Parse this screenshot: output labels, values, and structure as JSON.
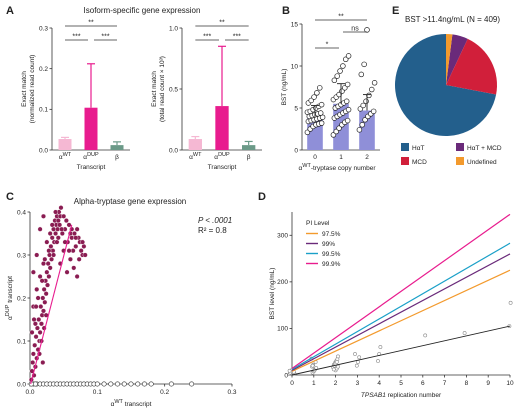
{
  "colors": {
    "alpha_wt": "#f5b8d3",
    "alpha_dup": "#e81c8e",
    "beta": "#6b9a88",
    "bst_bar": "#8f8fd8",
    "h_alpha_t": "#235f8c",
    "h_alpha_t_mcd": "#6a2a7a",
    "mcd": "#d11f3a",
    "undefined": "#f39a2d",
    "scatter_point": "#8a1c52",
    "pi_97_5": "#f39a2d",
    "pi_99": "#6a2a7a",
    "pi_99_5": "#1aa0c8",
    "pi_99_9": "#e81c8e"
  },
  "panels": {
    "A": {
      "letter": "A",
      "title": "Isoform-specific gene expression"
    },
    "B": {
      "letter": "B"
    },
    "C": {
      "letter": "C",
      "title": "Alpha-tryptase gene expression",
      "stat_p": "P < .0001",
      "stat_r2": "R² = 0.8"
    },
    "D": {
      "letter": "D",
      "legend_title": "PI Level"
    },
    "E": {
      "letter": "E",
      "title": "BST >11.4ng/mL (N = 409)"
    }
  },
  "chart_data": [
    {
      "id": "A1",
      "type": "bar",
      "categories": [
        "αWT",
        "αDUP",
        "β"
      ],
      "category_base": [
        "α",
        "α",
        "β"
      ],
      "category_sup": [
        "WT",
        "DUP",
        ""
      ],
      "values": [
        0.027,
        0.104,
        0.012
      ],
      "errors": [
        0.004,
        0.108,
        0.008
      ],
      "ylabel": "Exact match (normalized read count)",
      "ylabel_lines": [
        "Exact match",
        "(normalized read count)"
      ],
      "xlabel": "Transcript",
      "ylim": [
        0,
        0.3
      ],
      "yticks": [
        0,
        0.1,
        0.2,
        0.3
      ],
      "yticklabels": [
        "0.0",
        "0.1",
        "0.2",
        "0.3"
      ],
      "significance": [
        {
          "from": 0,
          "to": 2,
          "label": "**"
        },
        {
          "from": 0,
          "to": 1,
          "label": "***"
        },
        {
          "from": 1,
          "to": 2,
          "label": "***"
        }
      ]
    },
    {
      "id": "A2",
      "type": "bar",
      "categories": [
        "αWT",
        "αDUP",
        "β"
      ],
      "category_base": [
        "α",
        "α",
        "β"
      ],
      "category_sup": [
        "WT",
        "DUP",
        ""
      ],
      "values": [
        0.09,
        0.36,
        0.04
      ],
      "errors": [
        0.02,
        0.49,
        0.03
      ],
      "ylabel": "Exact match (total read count × 10³)",
      "ylabel_lines": [
        "Exact match",
        "(total read count × 10³)"
      ],
      "xlabel": "Transcript",
      "ylim": [
        0,
        1.0
      ],
      "yticks": [
        0,
        0.5,
        1.0
      ],
      "yticklabels": [
        "0.0",
        "0.5",
        "1.0"
      ],
      "significance": [
        {
          "from": 0,
          "to": 2,
          "label": "**"
        },
        {
          "from": 0,
          "to": 1,
          "label": "***"
        },
        {
          "from": 1,
          "to": 2,
          "label": "***"
        }
      ]
    },
    {
      "id": "B",
      "type": "bar",
      "categories": [
        "0",
        "1",
        "2"
      ],
      "values": [
        4.0,
        5.5,
        4.7
      ],
      "errors": [
        1.3,
        2.4,
        1.9
      ],
      "points": [
        [
          2.1,
          2.5,
          2.8,
          3.0,
          3.1,
          3.2,
          3.4,
          3.5,
          3.6,
          3.7,
          3.8,
          3.9,
          4.0,
          4.1,
          4.2,
          4.3,
          4.4,
          4.5,
          4.6,
          4.8,
          5.0,
          5.2,
          5.4,
          5.6,
          5.9,
          6.3,
          6.8,
          7.4
        ],
        [
          1.8,
          2.2,
          2.6,
          3.0,
          3.3,
          3.5,
          3.8,
          4.0,
          4.2,
          4.4,
          4.6,
          4.8,
          5.0,
          5.2,
          5.4,
          5.6,
          5.8,
          6.0,
          6.3,
          6.6,
          7.0,
          7.4,
          7.8,
          8.3,
          8.8,
          9.4,
          10.0,
          10.8,
          11.2
        ],
        [
          2.4,
          3.0,
          3.6,
          4.0,
          4.3,
          4.6,
          4.9,
          5.3,
          5.8,
          6.5,
          7.2,
          8.0,
          9.0,
          10.2,
          14.3
        ]
      ],
      "ylabel": "BST (ng/mL)",
      "xlabel": "αWT-tryptase copy number",
      "xlabel_base": "α",
      "xlabel_sup": "WT",
      "xlabel_rest": "-tryptase copy number",
      "ylim": [
        0,
        15
      ],
      "yticks": [
        0,
        5,
        10,
        15
      ],
      "significance": [
        {
          "from": 0,
          "to": 2,
          "label": "**"
        },
        {
          "from": 0,
          "to": 1,
          "label": "*"
        },
        {
          "from": 1,
          "to": 2,
          "label": "ns"
        }
      ]
    },
    {
      "id": "C",
      "type": "scatter",
      "title": "Alpha-tryptase gene expression",
      "xlabel": "αWT transcript",
      "xlabel_base": "α",
      "xlabel_sup": "WT",
      "xlabel_rest": " transcript",
      "ylabel": "αDUP transcript",
      "ylabel_base": "α",
      "ylabel_sup": "DUP",
      "ylabel_rest": " transcript",
      "xlim": [
        0,
        0.3
      ],
      "ylim": [
        0,
        0.4
      ],
      "xticks": [
        0,
        0.1,
        0.2,
        0.3
      ],
      "yticks": [
        0,
        0.1,
        0.2,
        0.3,
        0.4
      ],
      "xticklabels": [
        "0.0",
        "0.1",
        "0.2",
        "0.3"
      ],
      "yticklabels": [
        "0.0",
        "0.1",
        "0.2",
        "0.3",
        "0.4"
      ],
      "fit_line": {
        "x": [
          0.001,
          0.062
        ],
        "y": [
          0.0,
          0.37
        ]
      },
      "points_filled": [
        [
          0.002,
          0.01
        ],
        [
          0.003,
          0.03
        ],
        [
          0.004,
          0.05
        ],
        [
          0.005,
          0.07
        ],
        [
          0.006,
          0.02
        ],
        [
          0.007,
          0.09
        ],
        [
          0.008,
          0.04
        ],
        [
          0.009,
          0.11
        ],
        [
          0.01,
          0.06
        ],
        [
          0.011,
          0.13
        ],
        [
          0.012,
          0.08
        ],
        [
          0.013,
          0.15
        ],
        [
          0.014,
          0.1
        ],
        [
          0.015,
          0.12
        ],
        [
          0.016,
          0.18
        ],
        [
          0.017,
          0.14
        ],
        [
          0.018,
          0.16
        ],
        [
          0.019,
          0.2
        ],
        [
          0.02,
          0.17
        ],
        [
          0.021,
          0.22
        ],
        [
          0.022,
          0.19
        ],
        [
          0.023,
          0.24
        ],
        [
          0.024,
          0.21
        ],
        [
          0.025,
          0.26
        ],
        [
          0.026,
          0.23
        ],
        [
          0.027,
          0.28
        ],
        [
          0.028,
          0.25
        ],
        [
          0.029,
          0.3
        ],
        [
          0.03,
          0.27
        ],
        [
          0.031,
          0.32
        ],
        [
          0.032,
          0.29
        ],
        [
          0.033,
          0.34
        ],
        [
          0.034,
          0.31
        ],
        [
          0.035,
          0.36
        ],
        [
          0.036,
          0.33
        ],
        [
          0.037,
          0.38
        ],
        [
          0.038,
          0.35
        ],
        [
          0.039,
          0.37
        ],
        [
          0.04,
          0.39
        ],
        [
          0.041,
          0.36
        ],
        [
          0.042,
          0.38
        ],
        [
          0.043,
          0.4
        ],
        [
          0.044,
          0.37
        ],
        [
          0.045,
          0.39
        ],
        [
          0.046,
          0.41
        ],
        [
          0.048,
          0.35
        ],
        [
          0.05,
          0.39
        ],
        [
          0.052,
          0.36
        ],
        [
          0.054,
          0.38
        ],
        [
          0.056,
          0.33
        ],
        [
          0.058,
          0.37
        ],
        [
          0.06,
          0.35
        ],
        [
          0.062,
          0.34
        ],
        [
          0.064,
          0.31
        ],
        [
          0.066,
          0.35
        ],
        [
          0.068,
          0.32
        ],
        [
          0.07,
          0.36
        ],
        [
          0.072,
          0.34
        ],
        [
          0.074,
          0.33
        ],
        [
          0.076,
          0.31
        ],
        [
          0.078,
          0.3
        ],
        [
          0.08,
          0.32
        ],
        [
          0.045,
          0.28
        ],
        [
          0.05,
          0.31
        ],
        [
          0.055,
          0.26
        ],
        [
          0.06,
          0.29
        ],
        [
          0.065,
          0.27
        ],
        [
          0.07,
          0.25
        ],
        [
          0.04,
          0.33
        ],
        [
          0.035,
          0.3
        ],
        [
          0.03,
          0.35
        ],
        [
          0.025,
          0.33
        ],
        [
          0.02,
          0.28
        ],
        [
          0.015,
          0.25
        ],
        [
          0.01,
          0.22
        ],
        [
          0.005,
          0.18
        ],
        [
          0.008,
          0.14
        ],
        [
          0.012,
          0.2
        ],
        [
          0.018,
          0.24
        ],
        [
          0.022,
          0.29
        ],
        [
          0.028,
          0.31
        ],
        [
          0.033,
          0.37
        ],
        [
          0.038,
          0.4
        ],
        [
          0.042,
          0.34
        ],
        [
          0.047,
          0.36
        ],
        [
          0.052,
          0.33
        ],
        [
          0.058,
          0.31
        ],
        [
          0.062,
          0.36
        ],
        [
          0.068,
          0.34
        ],
        [
          0.073,
          0.29
        ],
        [
          0.078,
          0.33
        ],
        [
          0.082,
          0.3
        ],
        [
          0.02,
          0.39
        ],
        [
          0.015,
          0.36
        ],
        [
          0.01,
          0.3
        ],
        [
          0.005,
          0.26
        ],
        [
          0.003,
          0.12
        ],
        [
          0.006,
          0.15
        ],
        [
          0.009,
          0.18
        ],
        [
          0.014,
          0.07
        ],
        [
          0.017,
          0.1
        ],
        [
          0.021,
          0.13
        ],
        [
          0.024,
          0.16
        ],
        [
          0.019,
          0.05
        ]
      ],
      "points_hollow": [
        [
          0.005,
          0.0
        ],
        [
          0.01,
          0.0
        ],
        [
          0.015,
          0.0
        ],
        [
          0.02,
          0.0
        ],
        [
          0.025,
          0.0
        ],
        [
          0.03,
          0.0
        ],
        [
          0.035,
          0.0
        ],
        [
          0.04,
          0.0
        ],
        [
          0.045,
          0.0
        ],
        [
          0.05,
          0.0
        ],
        [
          0.055,
          0.0
        ],
        [
          0.06,
          0.0
        ],
        [
          0.065,
          0.0
        ],
        [
          0.07,
          0.0
        ],
        [
          0.075,
          0.0
        ],
        [
          0.08,
          0.0
        ],
        [
          0.085,
          0.0
        ],
        [
          0.09,
          0.0
        ],
        [
          0.095,
          0.0
        ],
        [
          0.1,
          0.0
        ],
        [
          0.11,
          0.0
        ],
        [
          0.12,
          0.0
        ],
        [
          0.13,
          0.0
        ],
        [
          0.14,
          0.0
        ],
        [
          0.15,
          0.0
        ],
        [
          0.16,
          0.0
        ],
        [
          0.17,
          0.0
        ],
        [
          0.18,
          0.0
        ],
        [
          0.21,
          0.0
        ],
        [
          0.24,
          0.0
        ],
        [
          0.002,
          0.0
        ],
        [
          0.008,
          0.0
        ]
      ]
    },
    {
      "id": "D",
      "type": "scatter",
      "xlabel": "TPSAB1 replication number",
      "ylabel": "BST level (ng/mL)",
      "xlim": [
        0,
        10
      ],
      "ylim": [
        0,
        350
      ],
      "xticks": [
        0,
        1,
        2,
        3,
        4,
        5,
        6,
        7,
        8,
        9,
        10
      ],
      "yticks": [
        0,
        100,
        200,
        300
      ],
      "points": [
        [
          0,
          2
        ],
        [
          0,
          4
        ],
        [
          0,
          6
        ],
        [
          0,
          8
        ],
        [
          0,
          3
        ],
        [
          0,
          5
        ],
        [
          0,
          10
        ],
        [
          0,
          12
        ],
        [
          0,
          7
        ],
        [
          0,
          9
        ],
        [
          1,
          5
        ],
        [
          1,
          8
        ],
        [
          1,
          12
        ],
        [
          1,
          15
        ],
        [
          1,
          18
        ],
        [
          1,
          22
        ],
        [
          1,
          10
        ],
        [
          1,
          28
        ],
        [
          1,
          35
        ],
        [
          1,
          20
        ],
        [
          2,
          10
        ],
        [
          2,
          14
        ],
        [
          2,
          18
        ],
        [
          2,
          22
        ],
        [
          2,
          26
        ],
        [
          2,
          30
        ],
        [
          2,
          34
        ],
        [
          2,
          16
        ],
        [
          2,
          20
        ],
        [
          2,
          24
        ],
        [
          2,
          28
        ],
        [
          2,
          40
        ],
        [
          2,
          12
        ],
        [
          3,
          20
        ],
        [
          3,
          28
        ],
        [
          3,
          38
        ],
        [
          3,
          45
        ],
        [
          4,
          30
        ],
        [
          4,
          45
        ],
        [
          4,
          60
        ],
        [
          6,
          85
        ],
        [
          8,
          90
        ],
        [
          10,
          105
        ],
        [
          10,
          155
        ]
      ],
      "regression_line": {
        "x": [
          0,
          10
        ],
        "y": [
          0,
          105
        ]
      },
      "series": [
        {
          "name": "97.5%",
          "x": [
            0,
            10
          ],
          "y": [
            8,
            225
          ]
        },
        {
          "name": "99%",
          "x": [
            0,
            10
          ],
          "y": [
            10,
            260
          ]
        },
        {
          "name": "99.5%",
          "x": [
            0,
            10
          ],
          "y": [
            12,
            283
          ]
        },
        {
          "name": "99.9%",
          "x": [
            0,
            10
          ],
          "y": [
            14,
            345
          ]
        }
      ],
      "legend_position": "top-left"
    },
    {
      "id": "E",
      "type": "pie",
      "title": "BST >11.4ng/mL (N = 409)",
      "categories": [
        "HαT",
        "HαT + MCD",
        "MCD",
        "Undefined"
      ],
      "legend_labels": [
        "HαT",
        "HαT + MCD",
        "MCD",
        "Undefined"
      ],
      "values": [
        72,
        5,
        21,
        2
      ],
      "legend_position": "bottom"
    }
  ]
}
